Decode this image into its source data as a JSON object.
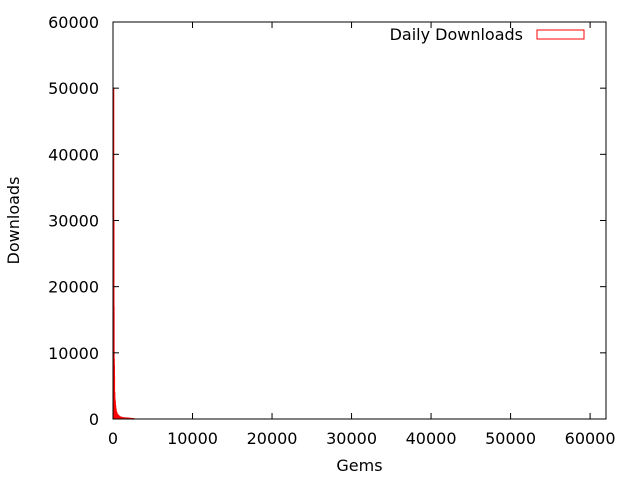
{
  "chart_data": {
    "type": "bar",
    "xlabel": "Gems",
    "ylabel": "Downloads",
    "xlim": [
      0,
      62000
    ],
    "ylim": [
      0,
      60000
    ],
    "x_ticks": [
      0,
      10000,
      20000,
      30000,
      40000,
      50000,
      60000
    ],
    "y_ticks": [
      0,
      10000,
      20000,
      30000,
      40000,
      50000,
      60000
    ],
    "grid": false,
    "legend_position": "top-right",
    "series": [
      {
        "name": "Daily Downloads",
        "color": "#ff0000",
        "x": [
          0,
          20,
          40,
          60,
          80,
          100,
          130,
          160,
          200,
          250,
          300,
          360,
          420,
          500,
          600,
          700,
          800,
          900,
          1000,
          1150,
          1300,
          1500,
          1700,
          1900,
          2100,
          2300,
          2500
        ],
        "values": [
          50000,
          30000,
          17000,
          9000,
          8000,
          6500,
          4000,
          3000,
          2700,
          2000,
          1500,
          1100,
          900,
          700,
          550,
          450,
          350,
          300,
          250,
          200,
          180,
          160,
          140,
          120,
          100,
          80,
          60
        ]
      }
    ]
  }
}
